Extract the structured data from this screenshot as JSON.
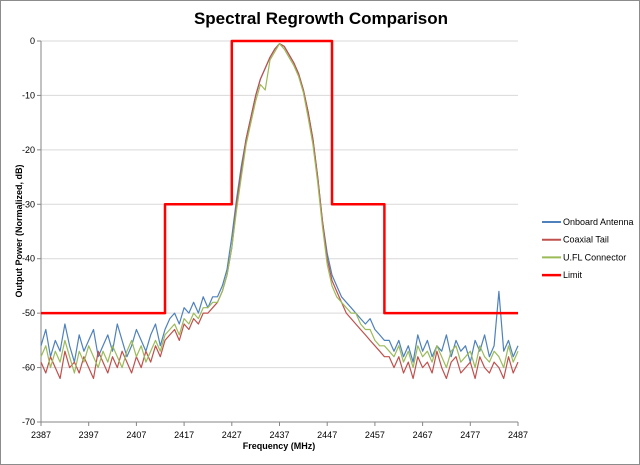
{
  "chart_data": {
    "type": "line",
    "title": "Spectral Regrowth Comparison",
    "xlabel": "Frequency (MHz)",
    "ylabel": "Output Power (Normalized, dB)",
    "xlim": [
      2387,
      2487
    ],
    "ylim": [
      -70,
      0
    ],
    "x_ticks": [
      "2387",
      "2397",
      "2407",
      "2417",
      "2427",
      "2437",
      "2447",
      "2457",
      "2467",
      "2477",
      "2487"
    ],
    "y_ticks": [
      "0",
      "-10",
      "-20",
      "-30",
      "-40",
      "-50",
      "-60",
      "-70"
    ],
    "grid": "horizontal",
    "legend_position": "right",
    "x": {
      "start": 2387,
      "step": 1
    },
    "series": [
      {
        "name": "Onboard Antenna",
        "color": "#4F81BD",
        "values": [
          -56,
          -53,
          -58,
          -55,
          -57,
          -52,
          -56,
          -59,
          -54,
          -57,
          -55,
          -53,
          -58,
          -56,
          -54,
          -57,
          -52,
          -55,
          -58,
          -56,
          -53,
          -55,
          -57,
          -54,
          -52,
          -56,
          -53,
          -51,
          -50,
          -52,
          -49,
          -50,
          -48,
          -50,
          -47,
          -49,
          -47,
          -47,
          -45,
          -42,
          -36,
          -29,
          -23,
          -18,
          -14,
          -10,
          -7,
          -5,
          -3,
          -1.5,
          -0.5,
          -1,
          -2.5,
          -4,
          -6,
          -9,
          -13,
          -18,
          -25,
          -33,
          -39,
          -43,
          -45,
          -47,
          -48,
          -49,
          -50,
          -51,
          -52,
          -51,
          -53,
          -54,
          -55,
          -55,
          -57,
          -55,
          -58,
          -56,
          -59,
          -54,
          -57,
          -55,
          -58,
          -56,
          -57,
          -54,
          -58,
          -55,
          -57,
          -56,
          -59,
          -55,
          -57,
          -54,
          -58,
          -56,
          -46,
          -57,
          -55,
          -58,
          -56
        ]
      },
      {
        "name": "Coaxial Tail",
        "color": "#C0504D",
        "values": [
          -59,
          -61,
          -58,
          -60,
          -62,
          -57,
          -60,
          -59,
          -61,
          -58,
          -60,
          -62,
          -57,
          -59,
          -61,
          -58,
          -60,
          -57,
          -59,
          -61,
          -58,
          -60,
          -57,
          -59,
          -56,
          -58,
          -55,
          -54,
          -53,
          -55,
          -52,
          -53,
          -51,
          -52,
          -50,
          -50,
          -49,
          -48,
          -46,
          -43,
          -38,
          -30,
          -24,
          -18,
          -14,
          -10,
          -7,
          -5,
          -3,
          -1.5,
          -0.5,
          -1,
          -2.5,
          -4,
          -6,
          -9,
          -13,
          -18,
          -25,
          -33,
          -40,
          -44,
          -46,
          -48,
          -50,
          -51,
          -52,
          -53,
          -54,
          -55,
          -56,
          -57,
          -58,
          -58,
          -60,
          -58,
          -61,
          -59,
          -62,
          -58,
          -60,
          -59,
          -61,
          -57,
          -60,
          -62,
          -59,
          -58,
          -61,
          -60,
          -59,
          -62,
          -58,
          -60,
          -61,
          -59,
          -60,
          -62,
          -58,
          -61,
          -59
        ]
      },
      {
        "name": "U.FL Connector",
        "color": "#9BBB59",
        "values": [
          -58,
          -56,
          -60,
          -57,
          -59,
          -55,
          -58,
          -61,
          -57,
          -59,
          -56,
          -58,
          -60,
          -57,
          -59,
          -56,
          -58,
          -60,
          -57,
          -55,
          -58,
          -56,
          -59,
          -57,
          -55,
          -57,
          -54,
          -53,
          -52,
          -54,
          -51,
          -52,
          -50,
          -51,
          -49,
          -49,
          -48,
          -48,
          -46,
          -43,
          -38,
          -31,
          -25,
          -19,
          -15,
          -11,
          -8,
          -9,
          -3.5,
          -2,
          -0.5,
          -1.5,
          -3,
          -4.5,
          -6.5,
          -9.5,
          -14,
          -19,
          -26,
          -34,
          -41,
          -45,
          -47,
          -48,
          -49,
          -50,
          -50,
          -52,
          -53,
          -53,
          -55,
          -56,
          -56,
          -57,
          -58,
          -56,
          -59,
          -57,
          -60,
          -56,
          -58,
          -57,
          -59,
          -56,
          -58,
          -60,
          -57,
          -56,
          -59,
          -58,
          -57,
          -60,
          -56,
          -58,
          -59,
          -57,
          -58,
          -60,
          -56,
          -59,
          -57
        ]
      },
      {
        "name": "Limit",
        "color": "#FF0000",
        "points": [
          [
            2387,
            -50
          ],
          [
            2413,
            -50
          ],
          [
            2413,
            -30
          ],
          [
            2427,
            -30
          ],
          [
            2427,
            0
          ],
          [
            2448,
            0
          ],
          [
            2448,
            -30
          ],
          [
            2459,
            -30
          ],
          [
            2459,
            -50
          ],
          [
            2487,
            -50
          ]
        ]
      }
    ]
  }
}
